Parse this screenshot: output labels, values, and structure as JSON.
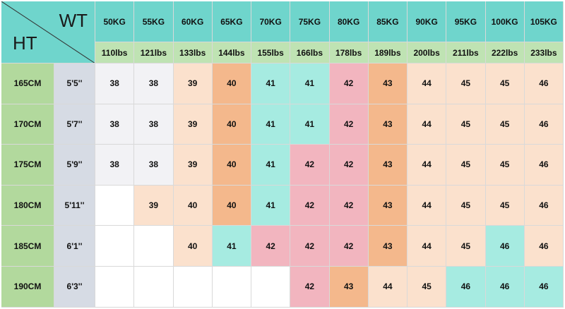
{
  "corner": {
    "weight_label": "WT",
    "height_label": "HT"
  },
  "weights_kg": [
    "50KG",
    "55KG",
    "60KG",
    "65KG",
    "70KG",
    "75KG",
    "80KG",
    "85KG",
    "90KG",
    "95KG",
    "100KG",
    "105KG"
  ],
  "weights_lbs": [
    "110lbs",
    "121lbs",
    "133lbs",
    "144lbs",
    "155lbs",
    "166lbs",
    "178lbs",
    "189lbs",
    "200lbs",
    "211lbs",
    "222lbs",
    "233lbs"
  ],
  "rows": [
    {
      "cm": "165CM",
      "ft": "5'5''",
      "sizes": [
        "38",
        "38",
        "39",
        "40",
        "41",
        "41",
        "42",
        "43",
        "44",
        "45",
        "45",
        "46"
      ],
      "colors": [
        "lgrey",
        "lgrey",
        "peach",
        "orange",
        "teal",
        "teal",
        "pink",
        "orange",
        "peach",
        "peach",
        "peach",
        "peach"
      ]
    },
    {
      "cm": "170CM",
      "ft": "5'7''",
      "sizes": [
        "38",
        "38",
        "39",
        "40",
        "41",
        "41",
        "42",
        "43",
        "44",
        "45",
        "45",
        "46"
      ],
      "colors": [
        "lgrey",
        "lgrey",
        "peach",
        "orange",
        "teal",
        "teal",
        "pink",
        "orange",
        "peach",
        "peach",
        "peach",
        "peach"
      ]
    },
    {
      "cm": "175CM",
      "ft": "5'9''",
      "sizes": [
        "38",
        "38",
        "39",
        "40",
        "41",
        "42",
        "42",
        "43",
        "44",
        "45",
        "45",
        "46"
      ],
      "colors": [
        "lgrey",
        "lgrey",
        "peach",
        "orange",
        "teal",
        "pink",
        "pink",
        "orange",
        "peach",
        "peach",
        "peach",
        "peach"
      ]
    },
    {
      "cm": "180CM",
      "ft": "5'11''",
      "sizes": [
        "",
        "39",
        "40",
        "40",
        "41",
        "42",
        "42",
        "43",
        "44",
        "45",
        "45",
        "46"
      ],
      "colors": [
        "white",
        "peach",
        "peach",
        "orange",
        "teal",
        "pink",
        "pink",
        "orange",
        "peach",
        "peach",
        "peach",
        "peach"
      ]
    },
    {
      "cm": "185CM",
      "ft": "6'1''",
      "sizes": [
        "",
        "",
        "40",
        "41",
        "42",
        "42",
        "42",
        "43",
        "44",
        "45",
        "46",
        "46"
      ],
      "colors": [
        "white",
        "white",
        "peach",
        "teal",
        "pink",
        "pink",
        "pink",
        "orange",
        "peach",
        "peach",
        "teal",
        "peach"
      ]
    },
    {
      "cm": "190CM",
      "ft": "6'3''",
      "sizes": [
        "",
        "",
        "",
        "",
        "",
        "42",
        "43",
        "44",
        "45",
        "46",
        "46",
        "46"
      ],
      "colors": [
        "white",
        "white",
        "white",
        "white",
        "white",
        "pink",
        "orange",
        "peach",
        "peach",
        "teal",
        "teal",
        "teal"
      ]
    }
  ]
}
